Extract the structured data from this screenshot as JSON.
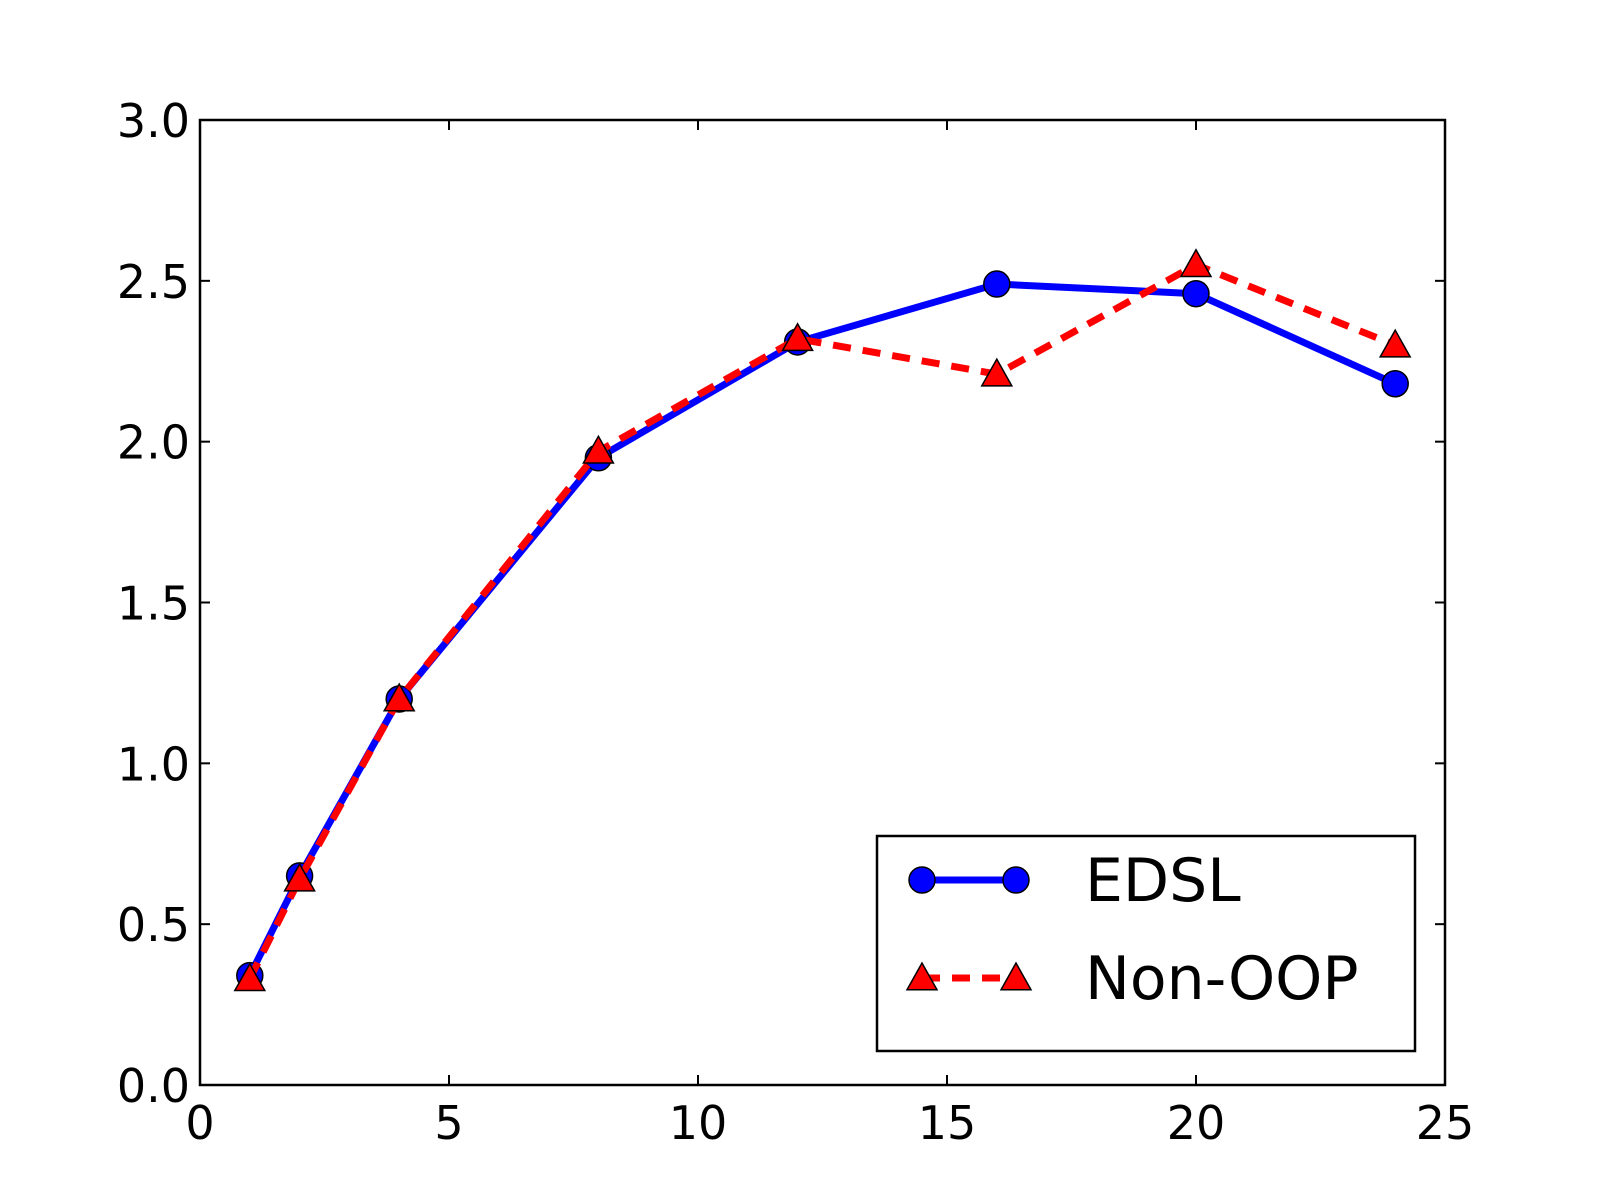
{
  "chart_data": {
    "type": "line",
    "title": "",
    "xlabel": "",
    "ylabel": "",
    "xlim": [
      0,
      25
    ],
    "ylim": [
      0.0,
      3.0
    ],
    "xticks": [
      "0",
      "5",
      "10",
      "15",
      "20",
      "25"
    ],
    "yticks": [
      "0.0",
      "0.5",
      "1.0",
      "1.5",
      "2.0",
      "2.5",
      "3.0"
    ],
    "grid": false,
    "legend_position": "lower-right",
    "series": [
      {
        "name": "EDSL",
        "color": "#0000ff",
        "line_style": "solid",
        "marker": "circle",
        "x": [
          1,
          2,
          4,
          8,
          12,
          16,
          20,
          24
        ],
        "y": [
          0.34,
          0.65,
          1.2,
          1.95,
          2.31,
          2.49,
          2.46,
          2.18
        ]
      },
      {
        "name": "Non-OOP",
        "color": "#ff0000",
        "line_style": "dashed",
        "marker": "triangle",
        "x": [
          1,
          2,
          4,
          8,
          12,
          16,
          20,
          24
        ],
        "y": [
          0.33,
          0.64,
          1.2,
          1.97,
          2.32,
          2.21,
          2.55,
          2.3
        ]
      }
    ]
  }
}
